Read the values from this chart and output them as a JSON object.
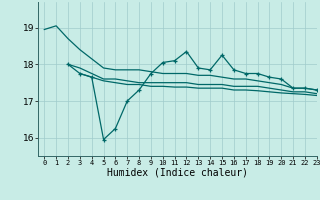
{
  "title": "",
  "xlabel": "Humidex (Indice chaleur)",
  "xlim": [
    -0.5,
    23
  ],
  "ylim": [
    15.5,
    19.7
  ],
  "background_color": "#c8ece6",
  "grid_color": "#a0cccc",
  "line_color": "#006868",
  "yticks": [
    16,
    17,
    18,
    19
  ],
  "xticks": [
    0,
    1,
    2,
    3,
    4,
    5,
    6,
    7,
    8,
    9,
    10,
    11,
    12,
    13,
    14,
    15,
    16,
    17,
    18,
    19,
    20,
    21,
    22,
    23
  ],
  "series": [
    {
      "x": [
        0,
        1,
        2,
        3,
        4,
        5,
        6,
        7,
        8,
        9,
        10,
        11,
        12,
        13,
        14,
        15,
        16,
        17,
        18,
        19,
        20,
        21,
        22,
        23
      ],
      "y": [
        18.95,
        19.05,
        18.7,
        18.4,
        18.15,
        17.9,
        17.85,
        17.85,
        17.85,
        17.8,
        17.75,
        17.75,
        17.75,
        17.7,
        17.7,
        17.65,
        17.6,
        17.6,
        17.55,
        17.5,
        17.45,
        17.35,
        17.35,
        17.3
      ],
      "marker": false,
      "linewidth": 0.9
    },
    {
      "x": [
        2,
        3,
        4,
        5,
        6,
        7,
        8,
        9,
        10,
        11,
        12,
        13,
        14,
        15,
        16,
        17,
        18,
        19,
        20,
        21,
        22,
        23
      ],
      "y": [
        18.0,
        17.9,
        17.75,
        17.6,
        17.6,
        17.55,
        17.5,
        17.5,
        17.5,
        17.5,
        17.5,
        17.45,
        17.45,
        17.45,
        17.4,
        17.4,
        17.4,
        17.35,
        17.3,
        17.25,
        17.25,
        17.2
      ],
      "marker": false,
      "linewidth": 0.9
    },
    {
      "x": [
        3,
        4,
        5,
        6,
        7,
        8,
        9,
        10,
        11,
        12,
        13,
        14,
        15,
        16,
        17,
        18,
        19,
        20,
        21,
        22,
        23
      ],
      "y": [
        17.75,
        17.65,
        17.55,
        17.5,
        17.45,
        17.45,
        17.4,
        17.4,
        17.38,
        17.38,
        17.35,
        17.35,
        17.35,
        17.3,
        17.3,
        17.28,
        17.25,
        17.22,
        17.2,
        17.18,
        17.15
      ],
      "marker": false,
      "linewidth": 0.9
    },
    {
      "x": [
        2,
        3,
        4,
        5,
        6,
        7,
        8,
        9,
        10,
        11,
        12,
        13,
        14,
        15,
        16,
        17,
        18,
        19,
        20,
        21,
        22,
        23
      ],
      "y": [
        18.0,
        17.75,
        17.65,
        15.95,
        16.25,
        17.0,
        17.3,
        17.75,
        18.05,
        18.1,
        18.35,
        17.9,
        17.85,
        18.25,
        17.85,
        17.75,
        17.75,
        17.65,
        17.6,
        17.35,
        17.35,
        17.3
      ],
      "marker": true,
      "linewidth": 0.9
    }
  ]
}
